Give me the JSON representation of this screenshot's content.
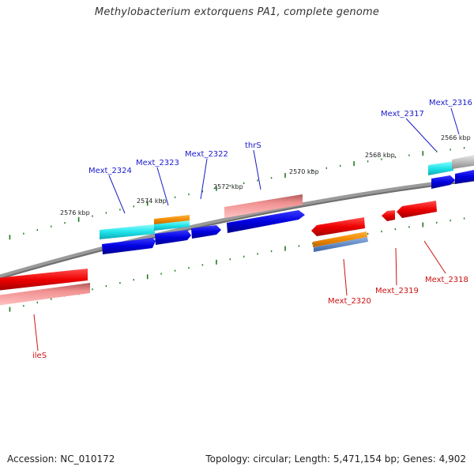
{
  "title": "Methylobacterium extorquens PA1, complete genome",
  "footer": {
    "accession": "Accession: NC_010172",
    "summary": "Topology: circular; Length: 5,471,154 bp; Genes: 4,902"
  },
  "scale_labels": [
    "2576 kbp",
    "2574 kbp",
    "2572 kbp",
    "2570 kbp",
    "2568 kbp",
    "2566 kbp"
  ],
  "colors": {
    "forward_label": "#1a1acc",
    "reverse_label": "#cc1111",
    "tick": "#1f7a1f",
    "backbone": "#8a8a8a"
  },
  "genes": [
    {
      "label": "Mext_2316",
      "strand": "forward"
    },
    {
      "label": "Mext_2317",
      "strand": "forward"
    },
    {
      "label": "thrS",
      "strand": "forward"
    },
    {
      "label": "Mext_2322",
      "strand": "forward"
    },
    {
      "label": "Mext_2323",
      "strand": "forward"
    },
    {
      "label": "Mext_2324",
      "strand": "forward"
    },
    {
      "label": "Mext_2318",
      "strand": "reverse"
    },
    {
      "label": "Mext_2319",
      "strand": "reverse"
    },
    {
      "label": "Mext_2320",
      "strand": "reverse"
    },
    {
      "label": "ileS",
      "strand": "reverse"
    }
  ]
}
